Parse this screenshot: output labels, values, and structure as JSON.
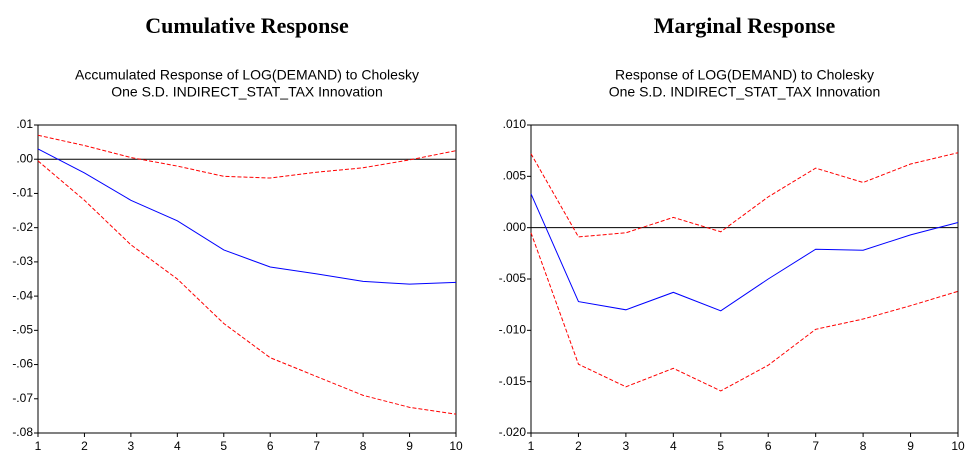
{
  "chart_data": [
    {
      "type": "line",
      "title": "Cumulative Response",
      "subtitle": [
        "Accumulated Response of LOG(DEMAND) to Cholesky",
        "One S.D. INDIRECT_STAT_TAX Innovation"
      ],
      "x": [
        1,
        2,
        3,
        4,
        5,
        6,
        7,
        8,
        9,
        10
      ],
      "xlim": [
        1,
        10
      ],
      "xticks": [
        1,
        2,
        3,
        4,
        5,
        6,
        7,
        8,
        9,
        10
      ],
      "ylim": [
        -0.08,
        0.01
      ],
      "yticks": [
        {
          "value": 0.01,
          "label": ".01"
        },
        {
          "value": 0,
          "label": ".00"
        },
        {
          "value": -0.01,
          "label": "-.01"
        },
        {
          "value": -0.02,
          "label": "-.02"
        },
        {
          "value": -0.03,
          "label": "-.03"
        },
        {
          "value": -0.04,
          "label": "-.04"
        },
        {
          "value": -0.05,
          "label": "-.05"
        },
        {
          "value": -0.06,
          "label": "-.06"
        },
        {
          "value": -0.07,
          "label": "-.07"
        },
        {
          "value": -0.08,
          "label": "-.08"
        }
      ],
      "zero_line": true,
      "series": [
        {
          "color": "#0000ff",
          "dashed": false,
          "values": [
            0.003,
            -0.004,
            -0.012,
            -0.018,
            -0.0265,
            -0.0315,
            -0.0335,
            -0.0357,
            -0.0365,
            -0.036
          ]
        },
        {
          "color": "#ff0000",
          "dashed": true,
          "values": [
            0.007,
            0.004,
            0.0005,
            -0.002,
            -0.005,
            -0.0055,
            -0.0038,
            -0.0025,
            -0.0002,
            0.0025
          ]
        },
        {
          "color": "#ff0000",
          "dashed": true,
          "values": [
            -0.0005,
            -0.012,
            -0.025,
            -0.035,
            -0.048,
            -0.058,
            -0.0635,
            -0.069,
            -0.0725,
            -0.0745
          ]
        }
      ]
    },
    {
      "type": "line",
      "title": "Marginal Response",
      "subtitle": [
        "Response of LOG(DEMAND) to Cholesky",
        "One S.D. INDIRECT_STAT_TAX Innovation"
      ],
      "x": [
        1,
        2,
        3,
        4,
        5,
        6,
        7,
        8,
        9,
        10
      ],
      "xlim": [
        1,
        10
      ],
      "xticks": [
        1,
        2,
        3,
        4,
        5,
        6,
        7,
        8,
        9,
        10
      ],
      "ylim": [
        -0.02,
        0.01
      ],
      "yticks": [
        {
          "value": 0.01,
          "label": ".010"
        },
        {
          "value": 0.005,
          "label": ".005"
        },
        {
          "value": 0,
          "label": ".000"
        },
        {
          "value": -0.005,
          "label": "-.005"
        },
        {
          "value": -0.01,
          "label": "-.010"
        },
        {
          "value": -0.015,
          "label": "-.015"
        },
        {
          "value": -0.02,
          "label": "-.020"
        }
      ],
      "zero_line": true,
      "series": [
        {
          "color": "#0000ff",
          "dashed": false,
          "values": [
            0.0033,
            -0.0072,
            -0.008,
            -0.0063,
            -0.0081,
            -0.005,
            -0.0021,
            -0.0022,
            -0.0007,
            0.0005
          ]
        },
        {
          "color": "#ff0000",
          "dashed": true,
          "values": [
            0.0072,
            -0.0009,
            -0.0005,
            0.001,
            -0.0004,
            0.003,
            0.0058,
            0.0044,
            0.0062,
            0.0073
          ]
        },
        {
          "color": "#ff0000",
          "dashed": true,
          "values": [
            -0.0005,
            -0.0133,
            -0.0155,
            -0.0137,
            -0.0159,
            -0.0134,
            -0.0099,
            -0.0089,
            -0.0076,
            -0.0062
          ]
        }
      ]
    }
  ]
}
